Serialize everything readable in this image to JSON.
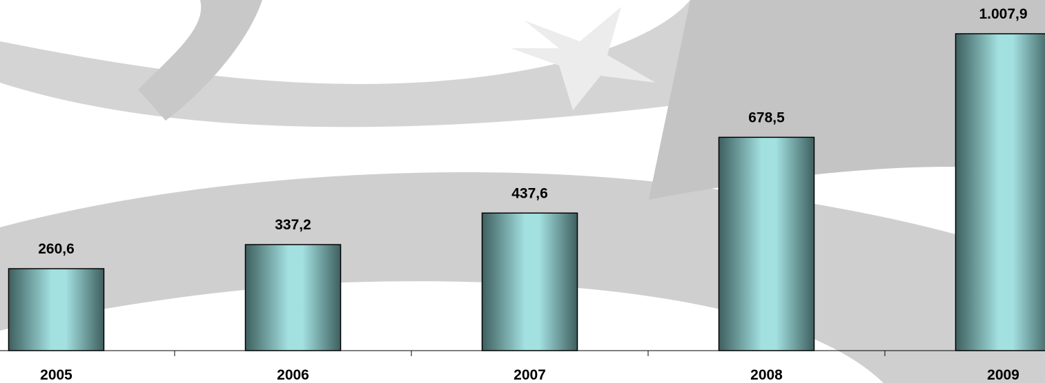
{
  "chart_data": {
    "type": "bar",
    "categories": [
      "2005",
      "2006",
      "2007",
      "2008",
      "2009"
    ],
    "values": [
      260.6,
      337.2,
      437.6,
      678.5,
      1007.9
    ],
    "value_labels": [
      "260,6",
      "337,2",
      "437,6",
      "678,5",
      "1.007,9"
    ],
    "color": "#a3e0e0"
  }
}
